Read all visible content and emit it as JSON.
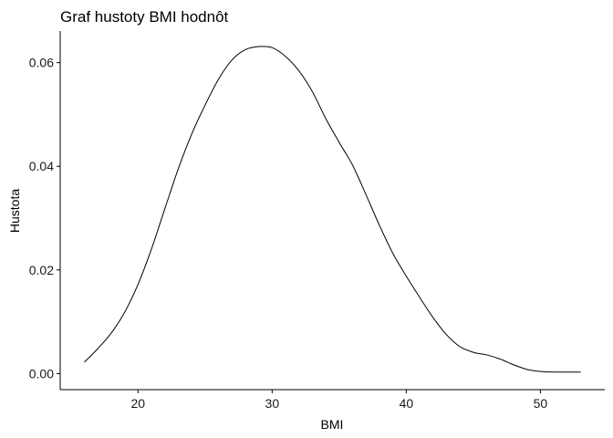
{
  "chart_data": {
    "type": "line",
    "title": "Graf hustoty BMI hodnôt",
    "xlabel": "BMI",
    "ylabel": "Hustota",
    "xlim": [
      14.2,
      54.8
    ],
    "ylim": [
      -0.0031,
      0.0661
    ],
    "x_ticks": [
      20,
      30,
      40,
      50
    ],
    "x_tick_labels": [
      "20",
      "30",
      "40",
      "50"
    ],
    "y_ticks": [
      0.0,
      0.02,
      0.04,
      0.06
    ],
    "y_tick_labels": [
      "0.00",
      "0.02",
      "0.04",
      "0.06"
    ],
    "grid": false,
    "legend": "none",
    "line_color": "#000000",
    "series": [
      {
        "x": [
          16.0,
          17.0,
          18.0,
          19.0,
          20.0,
          21.0,
          22.0,
          23.0,
          24.0,
          25.0,
          26.0,
          27.0,
          28.0,
          29.0,
          30.0,
          31.0,
          32.0,
          33.0,
          34.0,
          35.0,
          36.0,
          37.0,
          38.0,
          39.0,
          40.0,
          41.0,
          42.0,
          43.0,
          44.0,
          45.0,
          46.0,
          47.0,
          48.0,
          49.0,
          50.0,
          51.0,
          52.0,
          53.0
        ],
        "y": [
          0.0022,
          0.0048,
          0.0078,
          0.0118,
          0.0172,
          0.024,
          0.0318,
          0.0395,
          0.0462,
          0.0518,
          0.0568,
          0.0605,
          0.0625,
          0.0631,
          0.0629,
          0.0612,
          0.0584,
          0.0544,
          0.0492,
          0.0446,
          0.0402,
          0.0345,
          0.0286,
          0.0232,
          0.0188,
          0.0147,
          0.0108,
          0.0075,
          0.0052,
          0.0041,
          0.0036,
          0.0028,
          0.0017,
          0.0008,
          0.0004,
          0.0003,
          0.0003,
          0.0003
        ]
      }
    ]
  }
}
